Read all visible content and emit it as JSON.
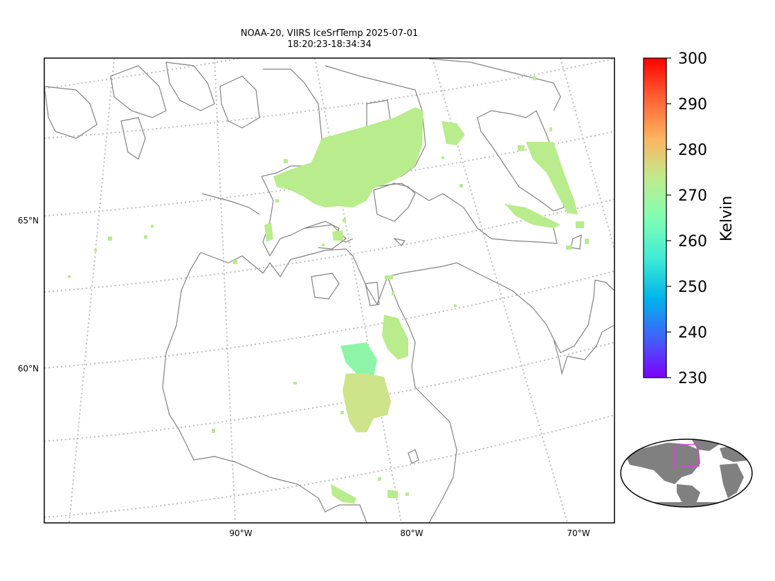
{
  "title": {
    "line1": "NOAA-20, VIIRS IceSrfTemp 2025-07-01",
    "line2": "18:20:23-18:34:34"
  },
  "map": {
    "lat_labels": [
      "65°N",
      "60°N"
    ],
    "lon_labels": [
      "90°W",
      "80°W",
      "70°W"
    ],
    "coastline_color": "#808080",
    "gridline_color": "#bbbbbb",
    "pixel_color_main": "#b8ec8c",
    "pixel_color_cold": "#8ef5a8",
    "pixel_color_warm": "#cde48a"
  },
  "colorbar": {
    "label": "Kelvin",
    "ticks": [
      "300",
      "290",
      "280",
      "270",
      "260",
      "250",
      "240",
      "230"
    ],
    "min": 230,
    "max": 300,
    "colormap": "rainbow",
    "colors": [
      "#7f00ff",
      "#4062fa",
      "#00b5eb",
      "#40ecd4",
      "#80feb3",
      "#c0eb8d",
      "#ffb360",
      "#ff6232",
      "#ff0000"
    ]
  },
  "inset": {
    "land_color": "#808080",
    "highlight_color": "#e040e0"
  }
}
